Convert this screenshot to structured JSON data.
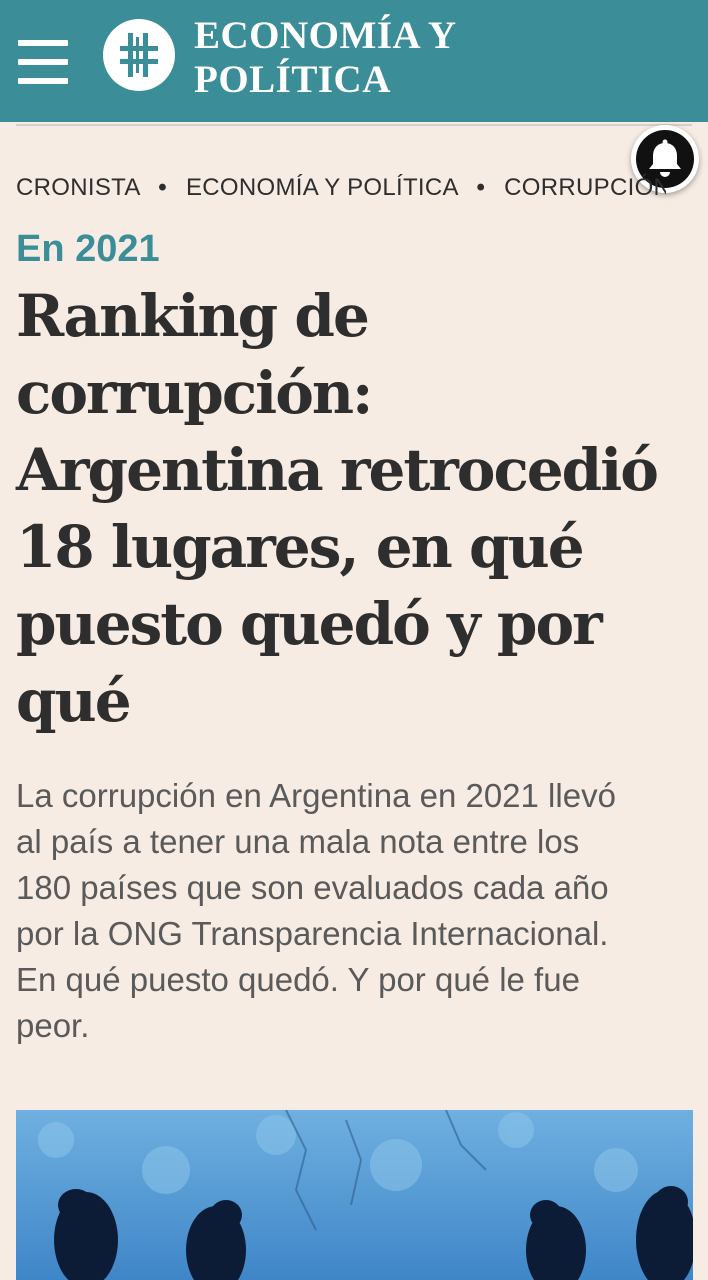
{
  "header": {
    "menu_icon": "hamburger-menu-icon",
    "logo_icon": "cronista-logo-icon",
    "section_title_line1": "ECONOMÍA Y",
    "section_title_line2": "POLÍTICA",
    "background_color": "#3b8d98"
  },
  "notification": {
    "icon": "bell-icon"
  },
  "breadcrumb": {
    "items": [
      "CRONISTA",
      "ECONOMÍA Y POLÍTICA",
      "CORRUPCIÓN"
    ],
    "separator": "•"
  },
  "article": {
    "kicker": "En 2021",
    "kicker_color": "#3b8d98",
    "headline_lines": [
      "Ranking de",
      "corrupción:",
      "Argentina retrocedió",
      "18 lugares, en qué",
      "puesto quedó y por",
      "qué"
    ],
    "summary_lines": [
      "La corrupción en Argentina en 2021 llevó",
      "al país a tener una mala nota entre los",
      "180 países que son evaluados cada año",
      "por la ONG Transparencia Internacional.",
      "En qué puesto quedó. Y por qué le fue",
      "peor."
    ]
  },
  "hero_image": {
    "icon": "article-photo-icon"
  }
}
